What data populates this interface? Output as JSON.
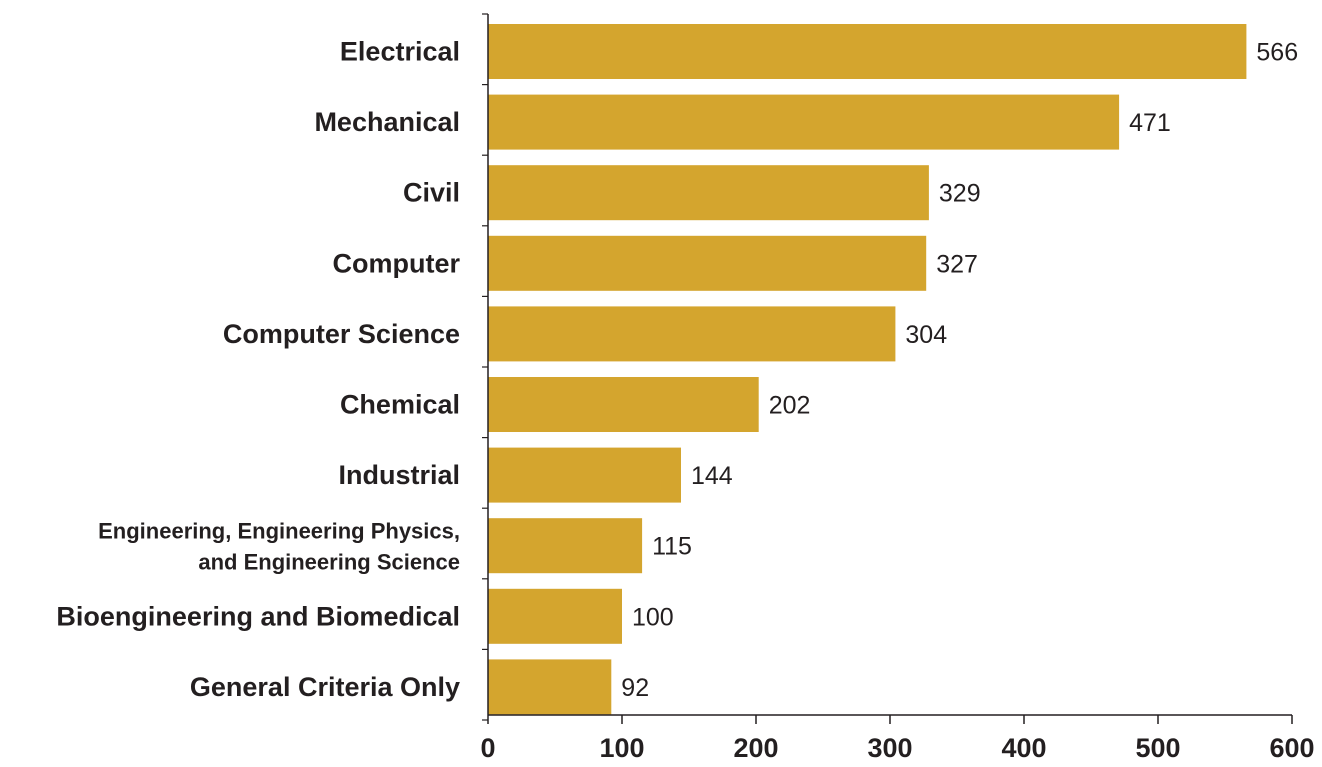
{
  "chart_data": {
    "type": "bar",
    "orientation": "horizontal",
    "categories": [
      [
        "Electrical"
      ],
      [
        "Mechanical"
      ],
      [
        "Civil"
      ],
      [
        "Computer"
      ],
      [
        "Computer Science"
      ],
      [
        "Chemical"
      ],
      [
        "Industrial"
      ],
      [
        "Engineering, Engineering Physics,",
        "and Engineering Science"
      ],
      [
        "Bioengineering and Biomedical"
      ],
      [
        "General Criteria Only"
      ]
    ],
    "values": [
      566,
      471,
      329,
      327,
      304,
      202,
      144,
      115,
      100,
      92
    ],
    "value_labels": [
      "566",
      "471",
      "329",
      "327",
      "304",
      "202",
      "144",
      "115",
      "100",
      "92"
    ],
    "x_ticks": [
      "0",
      "100",
      "200",
      "300",
      "400",
      "500",
      "600"
    ],
    "xlim": [
      0,
      600
    ],
    "grid": false,
    "legend": "none",
    "colors": {
      "bar": "#d4a52e",
      "axis": "#231f20",
      "text": "#231f20"
    }
  }
}
